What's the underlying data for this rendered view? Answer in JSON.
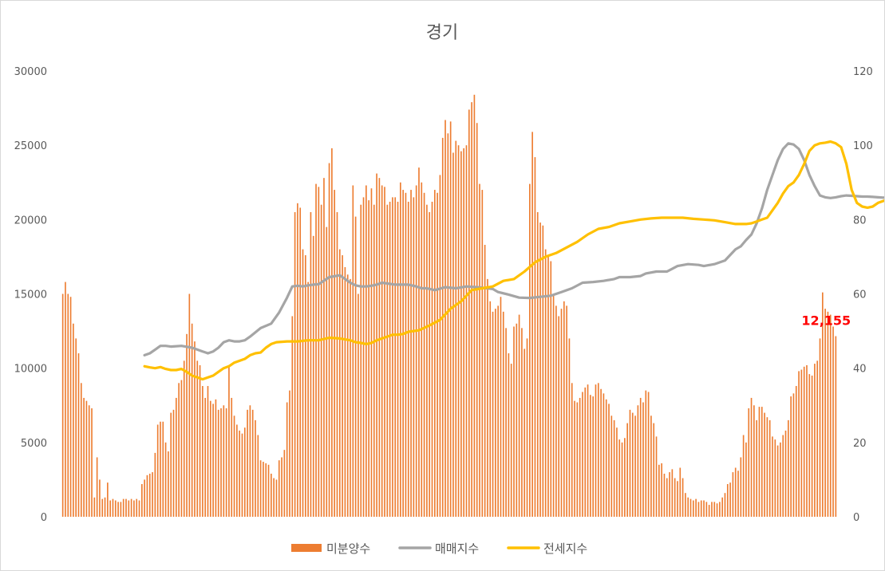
{
  "chart_data": {
    "type": "bar+line",
    "title": "경기",
    "y_left": {
      "min": 0,
      "max": 30000,
      "ticks": [
        "0",
        "5000",
        "10000",
        "15000",
        "20000",
        "25000",
        "30000"
      ]
    },
    "y_right": {
      "min": 0,
      "max": 120,
      "ticks": [
        "0",
        "20",
        "40",
        "60",
        "80",
        "100",
        "120"
      ]
    },
    "legend_position": "bottom",
    "annotation": {
      "text": "12,155",
      "series": "미분양수",
      "index": "last"
    },
    "colors": {
      "bars": "#ed7d31",
      "sale": "#a5a5a5",
      "jeonse": "#ffc000",
      "annotation": "#ff0000"
    },
    "series": [
      {
        "name": "미분양수",
        "kind": "bar",
        "axis": "left",
        "values": [
          15000,
          15800,
          15000,
          14800,
          13000,
          12000,
          11000,
          9000,
          8000,
          7800,
          7500,
          7300,
          1300,
          4000,
          2500,
          1200,
          1300,
          2300,
          1100,
          1200,
          1100,
          1000,
          1000,
          1200,
          1200,
          1100,
          1200,
          1100,
          1200,
          1100,
          2200,
          2500,
          2800,
          2900,
          3000,
          4300,
          6200,
          6400,
          6400,
          5000,
          4400,
          7000,
          7200,
          8000,
          9000,
          9200,
          10500,
          12300,
          15000,
          13000,
          11800,
          10500,
          10200,
          8800,
          8000,
          8800,
          7800,
          7600,
          7900,
          7200,
          7300,
          7500,
          7300,
          10200,
          8000,
          6800,
          6200,
          5800,
          5600,
          6000,
          7200,
          7500,
          7200,
          6500,
          5500,
          3800,
          3700,
          3600,
          3500,
          2900,
          2600,
          2500,
          3800,
          4000,
          4500,
          7700,
          8500,
          13500,
          20500,
          21100,
          20800,
          18000,
          17600,
          15800,
          20500,
          18900,
          22400,
          22200,
          21000,
          22800,
          19500,
          23800,
          24800,
          22000,
          20500,
          18000,
          17600,
          16800,
          16300,
          16000,
          22300,
          20200,
          15000,
          21000,
          21500,
          22300,
          21300,
          22100,
          21000,
          23100,
          22800,
          22300,
          22200,
          21000,
          21200,
          21500,
          21500,
          21200,
          22500,
          22000,
          21800,
          21200,
          22000,
          21500,
          22300,
          23500,
          22500,
          21800,
          21000,
          20500,
          21200,
          22000,
          21800,
          23000,
          25500,
          26700,
          25800,
          26600,
          24500,
          25300,
          25000,
          24600,
          24800,
          25000,
          27400,
          27900,
          28400,
          26500,
          22400,
          22000,
          18300,
          16000,
          14500,
          13800,
          14000,
          14200,
          14800,
          13800,
          12700,
          11000,
          10300,
          12800,
          13000,
          13600,
          12700,
          11300,
          12000,
          22400,
          25900,
          24200,
          20500,
          19800,
          19600,
          18000,
          17500,
          17200,
          15000,
          14200,
          13500,
          14000,
          14500,
          14200,
          12000,
          9000,
          7800,
          7700,
          8000,
          8400,
          8700,
          8900,
          8200,
          8100,
          8900,
          9000,
          8600,
          8300,
          7900,
          7600,
          6800,
          6500,
          6000,
          5200,
          5000,
          5300,
          6300,
          7200,
          7000,
          6800,
          7500,
          8000,
          7700,
          8500,
          8400,
          6800,
          6300,
          5400,
          3500,
          3600,
          2900,
          2600,
          3000,
          3200,
          2600,
          2400,
          3300,
          2600,
          1600,
          1300,
          1200,
          1100,
          1200,
          1000,
          1100,
          1100,
          1000,
          800,
          1000,
          1000,
          900,
          1000,
          1300,
          1600,
          2200,
          2300,
          3000,
          3300,
          3100,
          4000,
          5500,
          5000,
          7300,
          8000,
          7500,
          6500,
          7400,
          7400,
          7000,
          6700,
          6500,
          5400,
          5200,
          4800,
          5000,
          5500,
          5800,
          6500,
          8100,
          8300,
          8800,
          9800,
          9900,
          10100,
          10200,
          9600,
          9500,
          10300,
          10500,
          12000,
          15100,
          14000,
          13800,
          13600,
          12800,
          12155
        ]
      },
      {
        "name": "매매지수",
        "kind": "line",
        "axis": "right",
        "x": [
          0,
          2,
          4,
          6,
          8,
          10,
          14,
          18,
          20,
          22,
          24,
          26,
          28,
          30,
          32,
          34,
          36,
          38,
          40,
          44,
          48,
          51,
          54,
          56,
          58,
          60,
          62,
          64,
          66,
          70,
          74,
          78,
          80,
          82,
          84,
          86,
          88,
          90,
          95,
          100,
          103,
          105,
          107,
          110,
          114,
          118,
          122,
          126,
          130,
          132,
          134,
          138,
          142,
          146,
          150,
          154,
          158,
          162,
          166,
          170,
          174,
          178,
          180,
          184,
          188,
          190,
          194,
          198,
          202,
          206,
          210,
          212,
          216,
          220,
          222,
          224,
          226,
          228,
          230,
          232,
          234,
          236,
          238,
          240,
          242,
          244,
          246,
          248,
          250,
          252,
          254,
          256,
          258,
          260,
          262,
          264,
          266,
          268,
          270,
          272,
          274,
          276,
          278,
          280,
          282,
          284,
          286,
          288,
          290,
          292,
          294,
          296,
          298,
          300,
          302,
          304,
          306,
          308,
          310
        ],
        "values": [
          43.5,
          44,
          45,
          46,
          46,
          45.8,
          46,
          45.5,
          45,
          44.5,
          44,
          44.5,
          45.5,
          47,
          47.5,
          47.2,
          47.2,
          47.5,
          48.5,
          50.8,
          52,
          55,
          59,
          62,
          62.2,
          62,
          62.3,
          62.5,
          62.6,
          64.5,
          65,
          63,
          62.3,
          62,
          62,
          62.2,
          62.5,
          63,
          62.5,
          62.5,
          62,
          61.5,
          61.5,
          61,
          61.8,
          61.5,
          62,
          61.8,
          61.5,
          61.3,
          60.5,
          59.8,
          59,
          58.9,
          59.2,
          59.5,
          60.5,
          61.5,
          63,
          63.2,
          63.5,
          64,
          64.5,
          64.5,
          64.8,
          65.5,
          66,
          66,
          67.5,
          68,
          67.8,
          67.5,
          68,
          69,
          70.5,
          72,
          72.8,
          74.5,
          76,
          79,
          83,
          88,
          92,
          96,
          99,
          100.5,
          100.2,
          99,
          96,
          92,
          89,
          86.5,
          86,
          85.8,
          86,
          86.3,
          86.5,
          86.4,
          86.3,
          86.2,
          86.2,
          86.1,
          86,
          85.9,
          86,
          86.1,
          86,
          85.9,
          86,
          86.2,
          86.3,
          86.4,
          86.5,
          86.4,
          86.2,
          86.1,
          86,
          86,
          86
        ]
      },
      {
        "name": "전세지수",
        "kind": "line",
        "axis": "right",
        "x": [
          0,
          2,
          4,
          6,
          8,
          10,
          12,
          14,
          16,
          18,
          20,
          22,
          24,
          26,
          28,
          30,
          32,
          34,
          36,
          38,
          40,
          42,
          44,
          46,
          48,
          50,
          54,
          58,
          62,
          66,
          70,
          74,
          78,
          80,
          82,
          84,
          86,
          88,
          90,
          92,
          94,
          96,
          98,
          100,
          104,
          108,
          112,
          116,
          120,
          124,
          128,
          132,
          136,
          140,
          144,
          148,
          152,
          156,
          160,
          164,
          168,
          172,
          176,
          180,
          184,
          188,
          192,
          196,
          200,
          204,
          208,
          212,
          216,
          220,
          224,
          228,
          230,
          232,
          234,
          236,
          238,
          240,
          242,
          244,
          246,
          248,
          250,
          252,
          254,
          256,
          258,
          260,
          262,
          264,
          266,
          268,
          270,
          272,
          274,
          276,
          278,
          280,
          282,
          284,
          286,
          288,
          290,
          292,
          294,
          296,
          298,
          300,
          302,
          304,
          306,
          308,
          310
        ],
        "values": [
          40.5,
          40.2,
          40,
          40.3,
          39.8,
          39.5,
          39.5,
          39.8,
          39,
          38,
          37.5,
          37,
          37.5,
          38,
          39,
          40,
          40.5,
          41.5,
          42,
          42.5,
          43.5,
          44,
          44.2,
          45.5,
          46.5,
          47,
          47.2,
          47.2,
          47.5,
          47.5,
          48.2,
          48,
          47.5,
          47,
          46.8,
          46.5,
          46.8,
          47.5,
          48,
          48.5,
          49,
          49,
          49.2,
          49.8,
          50.2,
          51.5,
          53,
          56,
          58,
          61,
          61.5,
          62,
          63.5,
          64,
          66,
          68.5,
          70,
          71,
          72.5,
          74,
          76,
          77.5,
          78,
          79,
          79.5,
          80,
          80.3,
          80.5,
          80.5,
          80.5,
          80.2,
          80,
          79.8,
          79.3,
          78.8,
          78.8,
          79,
          79.5,
          80,
          80.5,
          82.5,
          84.5,
          87,
          89,
          90,
          92,
          95,
          98.5,
          100,
          100.5,
          100.7,
          101,
          100.5,
          99.5,
          95,
          88,
          84.5,
          83.5,
          83.2,
          83.5,
          84.5,
          85,
          85.5,
          86,
          86.5,
          86.8,
          87.2,
          87.5,
          87.8,
          88,
          88.2,
          88.5,
          88.5,
          88.6,
          88.7,
          88.8,
          89
        ]
      }
    ]
  }
}
